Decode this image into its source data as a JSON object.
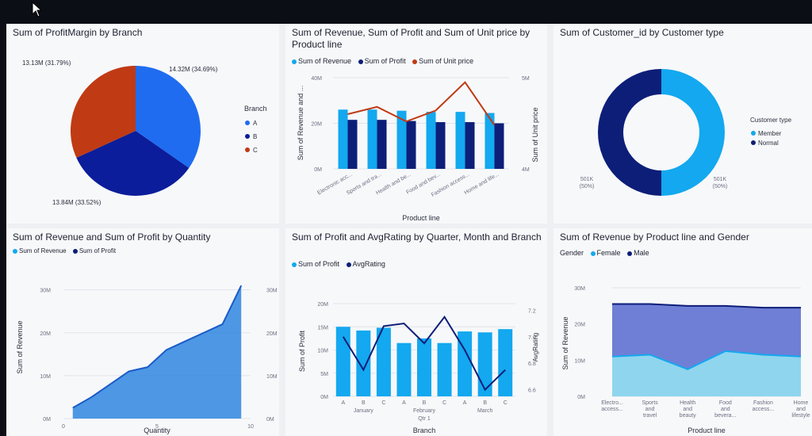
{
  "colors": {
    "teal": "#13a8ef",
    "navy": "#0d1e78",
    "red": "#c03a14",
    "blue": "#1f6cf0",
    "darkblue": "#0b1d9a",
    "area": "#2f86e0",
    "areaTop": "#5a6fcf",
    "areaBottom": "#8fd5ee"
  },
  "chart_data": [
    {
      "type": "pie",
      "title": "Sum of ProfitMargin by Branch",
      "legend_title": "Branch",
      "legend_position": "right",
      "slices": [
        {
          "name": "A",
          "value": 14.32,
          "label": "14.32M (34.69%)",
          "color": "#1f6cf0"
        },
        {
          "name": "B",
          "value": 13.84,
          "label": "13.84M (33.52%)",
          "color": "#0b1d9a"
        },
        {
          "name": "C",
          "value": 13.13,
          "label": "13.13M (31.79%)",
          "color": "#c03a14"
        }
      ]
    },
    {
      "type": "bar",
      "title": "Sum of Revenue, Sum of Profit and Sum of Unit price by Product line",
      "series_legend": [
        {
          "name": "Sum of Revenue",
          "color": "#13a8ef"
        },
        {
          "name": "Sum of Profit",
          "color": "#0d1e78"
        },
        {
          "name": "Sum of Unit price",
          "color": "#c03a14"
        }
      ],
      "categories": [
        "Electronic acc...",
        "Sports and tra...",
        "Health and be...",
        "Food and bev...",
        "Fashion access...",
        "Home and life..."
      ],
      "xlabel": "Product line",
      "ylabel": "Sum of Revenue and ...",
      "y2label": "Sum of Unit price",
      "y_ticks": [
        "0M",
        "20M",
        "40M"
      ],
      "y2_ticks": [
        "4M",
        "5M"
      ],
      "ylim": [
        0,
        40
      ],
      "y2lim": [
        4,
        5
      ],
      "series": [
        {
          "name": "Sum of Revenue",
          "values": [
            26,
            26,
            25.5,
            25,
            25,
            24.5
          ]
        },
        {
          "name": "Sum of Profit",
          "values": [
            21.5,
            21.5,
            21,
            20.5,
            20.5,
            20
          ]
        },
        {
          "name": "Sum of Unit price",
          "values": [
            4.6,
            4.68,
            4.52,
            4.64,
            4.95,
            4.48
          ]
        }
      ]
    },
    {
      "type": "pie",
      "title": "Sum of Customer_id by Customer type",
      "legend_title": "Customer type",
      "legend_position": "right",
      "slices": [
        {
          "name": "Member",
          "value": 501,
          "label": "501K",
          "pct": "(50%)",
          "color": "#13a8ef"
        },
        {
          "name": "Normal",
          "value": 501,
          "label": "501K",
          "pct": "(50%)",
          "color": "#0d1e78"
        }
      ]
    },
    {
      "type": "area",
      "title": "Sum of Revenue and Sum of Profit by Quantity",
      "series_legend": [
        {
          "name": "Sum of Revenue",
          "color": "#13a8ef"
        },
        {
          "name": "Sum of Profit",
          "color": "#0d1e78"
        }
      ],
      "xlabel": "Quantity",
      "ylabel": "Sum of Revenue",
      "x_ticks": [
        "0",
        "5",
        "10"
      ],
      "y_ticks": [
        "0M",
        "10M",
        "20M",
        "30M"
      ],
      "y2_ticks": [
        "0M",
        "10M",
        "20M",
        "30M"
      ],
      "xlim": [
        0,
        10
      ],
      "ylim": [
        0,
        34
      ],
      "x": [
        1,
        2,
        3,
        4,
        5,
        6,
        7,
        8,
        9,
        10
      ],
      "values": [
        2.5,
        5,
        8,
        11,
        12,
        16,
        18,
        20,
        22,
        31
      ]
    },
    {
      "type": "bar",
      "title": "Sum of Profit and AvgRating by Quarter, Month and Branch",
      "series_legend": [
        {
          "name": "Sum of Profit",
          "color": "#13a8ef"
        },
        {
          "name": "AvgRating",
          "color": "#0d1e78"
        }
      ],
      "categories": [
        "A",
        "B",
        "C",
        "A",
        "B",
        "C",
        "A",
        "B",
        "C"
      ],
      "groups": [
        "January",
        "February",
        "March"
      ],
      "quarter": "Qtr 1",
      "xlabel": "Branch",
      "ylabel": "Sum of Profit",
      "y2label": "AvgRating",
      "y_ticks": [
        "0M",
        "5M",
        "10M",
        "15M",
        "20M"
      ],
      "y2_ticks": [
        "6.6",
        "6.8",
        "7.0",
        "7.2"
      ],
      "ylim": [
        0,
        20
      ],
      "y2lim": [
        6.55,
        7.25
      ],
      "series": [
        {
          "name": "Sum of Profit",
          "values": [
            15,
            14.2,
            14.8,
            11.5,
            12.5,
            11.5,
            14,
            13.8,
            14.5
          ]
        },
        {
          "name": "AvgRating",
          "values": [
            7.0,
            6.75,
            7.08,
            7.1,
            6.95,
            7.15,
            6.9,
            6.6,
            6.75
          ]
        }
      ]
    },
    {
      "type": "area",
      "title": "Sum of Revenue by Product line and Gender",
      "series_legend_title": "Gender",
      "series_legend": [
        {
          "name": "Female",
          "color": "#13a8ef"
        },
        {
          "name": "Male",
          "color": "#0d1e78"
        }
      ],
      "categories": [
        "Electro... access...",
        "Sports and travel",
        "Health and beauty",
        "Food and bevera...",
        "Fashion access...",
        "Home and lifestyle"
      ],
      "xlabel": "Product line",
      "ylabel": "Sum of Revenue",
      "y_ticks": [
        "0M",
        "10M",
        "20M",
        "30M"
      ],
      "ylim": [
        0,
        30
      ],
      "series": [
        {
          "name": "Female",
          "values": [
            11,
            11.5,
            7.5,
            12.5,
            11.5,
            11
          ]
        },
        {
          "name": "Male",
          "values": [
            25.5,
            25.5,
            25,
            25,
            24.5,
            24.5
          ]
        }
      ]
    }
  ]
}
